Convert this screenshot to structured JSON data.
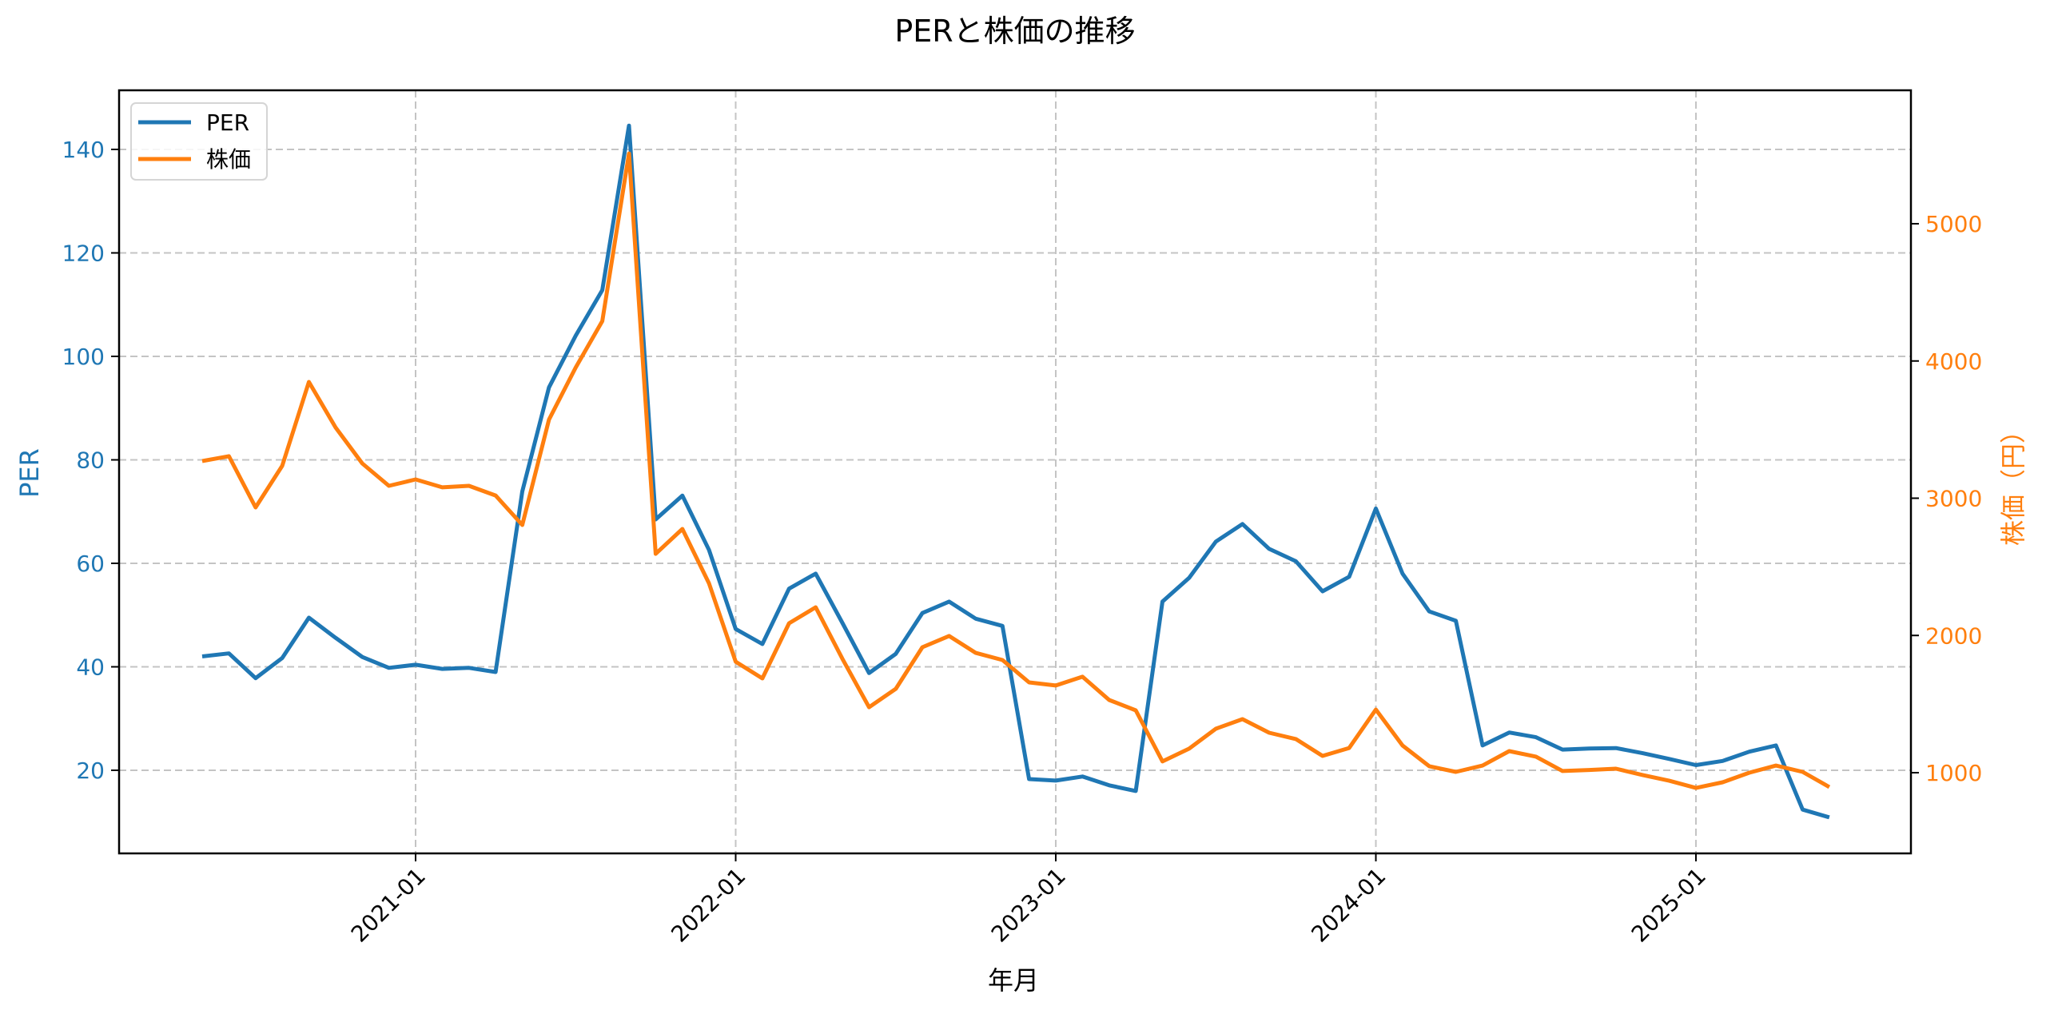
{
  "chart_data": {
    "type": "line",
    "title": "PERと株価の推移",
    "xlabel": "年月",
    "ylabel": "PER",
    "ylabel_right": "株価（円）",
    "x_tick_labels": [
      "2021-01",
      "2022-01",
      "2023-01",
      "2024-01",
      "2025-01"
    ],
    "y_ticks_left": [
      20,
      40,
      60,
      80,
      100,
      120,
      140
    ],
    "y_ticks_right": [
      1000,
      2000,
      3000,
      4000,
      5000
    ],
    "ylim_left": [
      4.3,
      151.4
    ],
    "ylim_right": [
      460,
      5950
    ],
    "grid": true,
    "legend_position": "upper left",
    "colors": {
      "PER": "#1f77b4",
      "株価": "#ff7f0e"
    },
    "x": [
      "2020-05",
      "2020-06",
      "2020-07",
      "2020-08",
      "2020-09",
      "2020-10",
      "2020-11",
      "2020-12",
      "2021-01",
      "2021-02",
      "2021-03",
      "2021-04",
      "2021-05",
      "2021-06",
      "2021-07",
      "2021-08",
      "2021-09",
      "2021-10",
      "2021-11",
      "2021-12",
      "2022-01",
      "2022-02",
      "2022-03",
      "2022-04",
      "2022-05",
      "2022-06",
      "2022-07",
      "2022-08",
      "2022-09",
      "2022-10",
      "2022-11",
      "2022-12",
      "2023-01",
      "2023-02",
      "2023-03",
      "2023-04",
      "2023-05",
      "2023-06",
      "2023-07",
      "2023-08",
      "2023-09",
      "2023-10",
      "2023-11",
      "2023-12",
      "2024-01",
      "2024-02",
      "2024-03",
      "2024-04",
      "2024-05",
      "2024-06",
      "2024-07",
      "2024-08",
      "2024-09",
      "2024-10",
      "2024-11",
      "2024-12",
      "2025-01",
      "2025-02",
      "2025-03",
      "2025-04",
      "2025-05",
      "2025-06"
    ],
    "series": [
      {
        "name": "PER",
        "axis": "left",
        "values": [
          42.0,
          42.6,
          37.8,
          41.7,
          49.5,
          45.6,
          41.9,
          39.8,
          40.4,
          39.6,
          39.8,
          39.0,
          73.9,
          94.0,
          104.0,
          112.8,
          144.6,
          68.5,
          73.1,
          62.6,
          47.3,
          44.4,
          55.1,
          58.0,
          48.5,
          38.8,
          42.5,
          50.4,
          52.6,
          49.3,
          47.9,
          18.3,
          18.0,
          18.8,
          17.1,
          16.0,
          52.6,
          57.2,
          64.2,
          67.6,
          62.8,
          60.4,
          54.6,
          57.4,
          70.6,
          58.0,
          50.7,
          48.9,
          24.8,
          27.3,
          26.4,
          24.0,
          24.2,
          24.3,
          23.3,
          22.2,
          21.0,
          21.8,
          23.6,
          24.8,
          12.4,
          10.9
        ]
      },
      {
        "name": "株価",
        "axis": "right",
        "values": [
          3271,
          3306,
          2933,
          3236,
          3847,
          3515,
          3253,
          3090,
          3137,
          3079,
          3090,
          3020,
          2805,
          3573,
          3952,
          4290,
          5512,
          2595,
          2776,
          2380,
          1809,
          1687,
          2089,
          2205,
          1830,
          1477,
          1611,
          1914,
          1996,
          1873,
          1821,
          1658,
          1635,
          1699,
          1530,
          1454,
          1082,
          1175,
          1320,
          1390,
          1291,
          1245,
          1122,
          1180,
          1460,
          1198,
          1047,
          1006,
          1052,
          1157,
          1117,
          1012,
          1020,
          1029,
          983,
          941,
          889,
          930,
          1000,
          1052,
          1006,
          895
        ]
      }
    ]
  },
  "legend": {
    "items": [
      {
        "label": "PER",
        "color": "#1f77b4"
      },
      {
        "label": "株価",
        "color": "#ff7f0e"
      }
    ]
  }
}
